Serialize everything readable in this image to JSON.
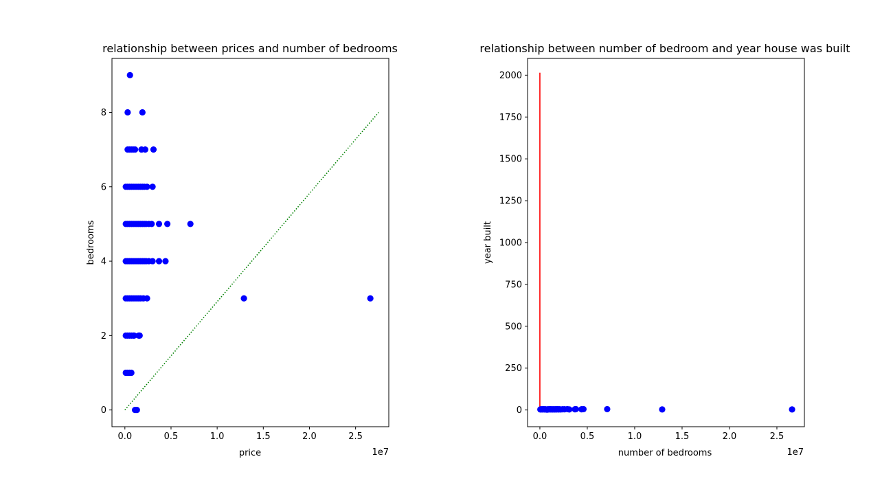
{
  "chart_data": [
    {
      "type": "scatter",
      "title": "relationship between prices and number of bedrooms",
      "xlabel": "price",
      "ylabel": "bedrooms",
      "x_offset_label": "1e7",
      "xlim": [
        -1400000,
        28600000
      ],
      "ylim": [
        -0.45,
        9.45
      ],
      "xticks": [
        0,
        0.5,
        1.0,
        1.5,
        2.0,
        2.5
      ],
      "xtick_labels": [
        "0.0",
        "0.5",
        "1.0",
        "1.5",
        "2.0",
        "2.5"
      ],
      "xtick_scale": 10000000,
      "yticks": [
        0,
        2,
        4,
        6,
        8
      ],
      "ytick_labels": [
        "0",
        "2",
        "4",
        "6",
        "8"
      ],
      "grid": false,
      "marker_color": "#0000ff",
      "line_color": "#008000",
      "points": [
        {
          "x": 550000,
          "y": 9
        },
        {
          "x": 300000,
          "y": 8
        },
        {
          "x": 1900000,
          "y": 8
        },
        {
          "x": 300000,
          "y": 7
        },
        {
          "x": 500000,
          "y": 7
        },
        {
          "x": 700000,
          "y": 7
        },
        {
          "x": 900000,
          "y": 7
        },
        {
          "x": 1100000,
          "y": 7
        },
        {
          "x": 1800000,
          "y": 7
        },
        {
          "x": 2200000,
          "y": 7
        },
        {
          "x": 3100000,
          "y": 7
        },
        {
          "x": 100000,
          "y": 6
        },
        {
          "x": 300000,
          "y": 6
        },
        {
          "x": 500000,
          "y": 6
        },
        {
          "x": 700000,
          "y": 6
        },
        {
          "x": 900000,
          "y": 6
        },
        {
          "x": 1100000,
          "y": 6
        },
        {
          "x": 1300000,
          "y": 6
        },
        {
          "x": 1500000,
          "y": 6
        },
        {
          "x": 1700000,
          "y": 6
        },
        {
          "x": 1900000,
          "y": 6
        },
        {
          "x": 2100000,
          "y": 6
        },
        {
          "x": 2400000,
          "y": 6
        },
        {
          "x": 3000000,
          "y": 6
        },
        {
          "x": 100000,
          "y": 5
        },
        {
          "x": 300000,
          "y": 5
        },
        {
          "x": 500000,
          "y": 5
        },
        {
          "x": 700000,
          "y": 5
        },
        {
          "x": 900000,
          "y": 5
        },
        {
          "x": 1100000,
          "y": 5
        },
        {
          "x": 1300000,
          "y": 5
        },
        {
          "x": 1500000,
          "y": 5
        },
        {
          "x": 1700000,
          "y": 5
        },
        {
          "x": 1900000,
          "y": 5
        },
        {
          "x": 2100000,
          "y": 5
        },
        {
          "x": 2300000,
          "y": 5
        },
        {
          "x": 2600000,
          "y": 5
        },
        {
          "x": 2900000,
          "y": 5
        },
        {
          "x": 3700000,
          "y": 5
        },
        {
          "x": 4600000,
          "y": 5
        },
        {
          "x": 7100000,
          "y": 5
        },
        {
          "x": 100000,
          "y": 4
        },
        {
          "x": 300000,
          "y": 4
        },
        {
          "x": 500000,
          "y": 4
        },
        {
          "x": 700000,
          "y": 4
        },
        {
          "x": 900000,
          "y": 4
        },
        {
          "x": 1100000,
          "y": 4
        },
        {
          "x": 1300000,
          "y": 4
        },
        {
          "x": 1500000,
          "y": 4
        },
        {
          "x": 1700000,
          "y": 4
        },
        {
          "x": 1900000,
          "y": 4
        },
        {
          "x": 2100000,
          "y": 4
        },
        {
          "x": 2300000,
          "y": 4
        },
        {
          "x": 2600000,
          "y": 4
        },
        {
          "x": 3000000,
          "y": 4
        },
        {
          "x": 3700000,
          "y": 4
        },
        {
          "x": 4400000,
          "y": 4
        },
        {
          "x": 100000,
          "y": 3
        },
        {
          "x": 300000,
          "y": 3
        },
        {
          "x": 500000,
          "y": 3
        },
        {
          "x": 700000,
          "y": 3
        },
        {
          "x": 900000,
          "y": 3
        },
        {
          "x": 1100000,
          "y": 3
        },
        {
          "x": 1300000,
          "y": 3
        },
        {
          "x": 1500000,
          "y": 3
        },
        {
          "x": 1700000,
          "y": 3
        },
        {
          "x": 2000000,
          "y": 3
        },
        {
          "x": 2400000,
          "y": 3
        },
        {
          "x": 12900000,
          "y": 3
        },
        {
          "x": 26600000,
          "y": 3
        },
        {
          "x": 100000,
          "y": 2
        },
        {
          "x": 300000,
          "y": 2
        },
        {
          "x": 500000,
          "y": 2
        },
        {
          "x": 700000,
          "y": 2
        },
        {
          "x": 900000,
          "y": 2
        },
        {
          "x": 1000000,
          "y": 2
        },
        {
          "x": 1500000,
          "y": 2
        },
        {
          "x": 1600000,
          "y": 2
        },
        {
          "x": 100000,
          "y": 1
        },
        {
          "x": 300000,
          "y": 1
        },
        {
          "x": 500000,
          "y": 1
        },
        {
          "x": 700000,
          "y": 1
        },
        {
          "x": 1100000,
          "y": 0
        },
        {
          "x": 1300000,
          "y": 0
        }
      ],
      "line": {
        "style": "dotted",
        "points": [
          [
            0,
            0
          ],
          [
            27500000,
            8
          ]
        ]
      }
    },
    {
      "type": "scatter",
      "title": "relationship between number of bedroom and year house was built",
      "xlabel": "number of bedrooms",
      "ylabel": "year built",
      "x_offset_label": "1e7",
      "xlim": [
        -1300000,
        27900000
      ],
      "ylim": [
        -100,
        2100
      ],
      "xticks": [
        0,
        0.5,
        1.0,
        1.5,
        2.0,
        2.5
      ],
      "xtick_labels": [
        "0.0",
        "0.5",
        "1.0",
        "1.5",
        "2.0",
        "2.5"
      ],
      "xtick_scale": 10000000,
      "yticks": [
        0,
        250,
        500,
        750,
        1000,
        1250,
        1500,
        1750,
        2000
      ],
      "ytick_labels": [
        "0",
        "250",
        "500",
        "750",
        "1000",
        "1250",
        "1500",
        "1750",
        "2000"
      ],
      "grid": false,
      "marker_color": "#0000ff",
      "line_color": "#ff0000",
      "points": [
        {
          "x": 50000,
          "y": 3
        },
        {
          "x": 150000,
          "y": 4
        },
        {
          "x": 250000,
          "y": 3
        },
        {
          "x": 350000,
          "y": 5
        },
        {
          "x": 450000,
          "y": 3
        },
        {
          "x": 550000,
          "y": 4
        },
        {
          "x": 650000,
          "y": 3
        },
        {
          "x": 750000,
          "y": 2
        },
        {
          "x": 850000,
          "y": 4
        },
        {
          "x": 950000,
          "y": 3
        },
        {
          "x": 1050000,
          "y": 5
        },
        {
          "x": 1150000,
          "y": 3
        },
        {
          "x": 1250000,
          "y": 4
        },
        {
          "x": 1350000,
          "y": 3
        },
        {
          "x": 1450000,
          "y": 4
        },
        {
          "x": 1550000,
          "y": 3
        },
        {
          "x": 1650000,
          "y": 4
        },
        {
          "x": 1750000,
          "y": 3
        },
        {
          "x": 1850000,
          "y": 5
        },
        {
          "x": 1950000,
          "y": 3
        },
        {
          "x": 2050000,
          "y": 4
        },
        {
          "x": 2200000,
          "y": 3
        },
        {
          "x": 2400000,
          "y": 4
        },
        {
          "x": 2600000,
          "y": 4
        },
        {
          "x": 2900000,
          "y": 5
        },
        {
          "x": 3100000,
          "y": 3
        },
        {
          "x": 3700000,
          "y": 4
        },
        {
          "x": 3800000,
          "y": 5
        },
        {
          "x": 4400000,
          "y": 4
        },
        {
          "x": 4600000,
          "y": 5
        },
        {
          "x": 7100000,
          "y": 5
        },
        {
          "x": 12900000,
          "y": 3
        },
        {
          "x": 26600000,
          "y": 3
        }
      ],
      "line": {
        "style": "solid",
        "points": [
          [
            0,
            0
          ],
          [
            0,
            2015
          ]
        ]
      }
    }
  ]
}
